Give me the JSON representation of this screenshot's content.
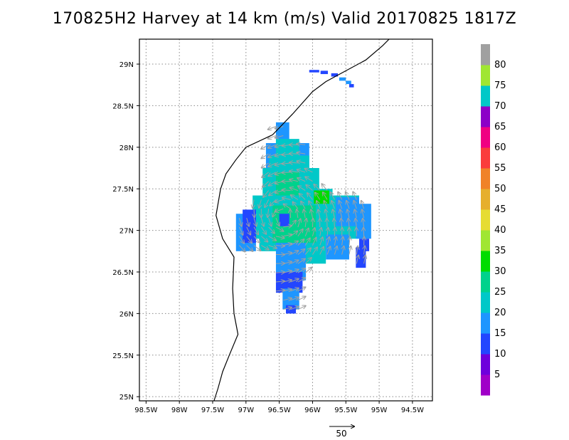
{
  "title": "170825H2 Harvey at 14 km (m/s) Valid 20170825 1817Z",
  "map": {
    "lon_range": [
      -98.6,
      -94.2
    ],
    "lat_range": [
      24.95,
      29.3
    ],
    "lon_ticks": [
      -98.5,
      -98,
      -97.5,
      -97,
      -96.5,
      -96,
      -95.5,
      -95,
      -94.5
    ],
    "lon_tick_labels": [
      "98.5W",
      "98W",
      "97.5W",
      "97W",
      "96.5W",
      "96W",
      "95.5W",
      "95W",
      "94.5W"
    ],
    "lat_ticks": [
      25,
      25.5,
      26,
      26.5,
      27,
      27.5,
      28,
      28.5,
      29
    ],
    "lat_tick_labels": [
      "25N",
      "25.5N",
      "26N",
      "26.5N",
      "27N",
      "27.5N",
      "28N",
      "28.5N",
      "29N"
    ],
    "grid": "dotted",
    "coastline_color": "#000000",
    "coastline": [
      [
        -94.85,
        29.3
      ],
      [
        -94.95,
        29.22
      ],
      [
        -95.2,
        29.05
      ],
      [
        -95.5,
        28.92
      ],
      [
        -95.8,
        28.79
      ],
      [
        -96.0,
        28.67
      ],
      [
        -96.3,
        28.4
      ],
      [
        -96.6,
        28.15
      ],
      [
        -97.0,
        28.0
      ],
      [
        -97.15,
        27.85
      ],
      [
        -97.3,
        27.68
      ],
      [
        -97.38,
        27.5
      ],
      [
        -97.45,
        27.18
      ],
      [
        -97.35,
        26.9
      ],
      [
        -97.18,
        26.68
      ],
      [
        -97.2,
        26.3
      ],
      [
        -97.18,
        26.0
      ],
      [
        -97.12,
        25.75
      ],
      [
        -97.25,
        25.5
      ],
      [
        -97.35,
        25.3
      ],
      [
        -97.42,
        25.1
      ],
      [
        -97.48,
        24.95
      ]
    ]
  },
  "colorbar": {
    "labels": [
      "5",
      "10",
      "15",
      "20",
      "25",
      "30",
      "35",
      "40",
      "45",
      "50",
      "55",
      "60",
      "65",
      "70",
      "75",
      "80"
    ],
    "colors": [
      "#a000c8",
      "#6e00dc",
      "#2346ff",
      "#1e96ff",
      "#00c8c8",
      "#00d28c",
      "#00dc00",
      "#a0e632",
      "#e6dc32",
      "#e6af2d",
      "#f08228",
      "#fa3c3c",
      "#f00082",
      "#8c00c8",
      "#00c8c8",
      "#a0e632",
      "#a0a0a0"
    ]
  },
  "wind_field": {
    "center": [
      -96.43,
      27.17
    ],
    "cell_deg": 0.0833,
    "colors": {
      "lt10": "#2346ff",
      "10to15": "#1e96ff",
      "15to20": "#00c8c8",
      "20to25": "#00d28c",
      "25to30": "#00dc00"
    },
    "blocks": [
      {
        "lon": [
          -96.55,
          -96.35
        ],
        "lat": [
          28.05,
          28.3
        ],
        "c": "10to15"
      },
      {
        "lon": [
          -96.7,
          -96.05
        ],
        "lat": [
          27.75,
          28.05
        ],
        "c": "10to15"
      },
      {
        "lon": [
          -96.55,
          -96.2
        ],
        "lat": [
          27.9,
          28.1
        ],
        "c": "15to20"
      },
      {
        "lon": [
          -96.75,
          -95.9
        ],
        "lat": [
          27.4,
          27.75
        ],
        "c": "15to20"
      },
      {
        "lon": [
          -96.65,
          -96.05
        ],
        "lat": [
          27.45,
          27.9
        ],
        "c": "15to20"
      },
      {
        "lon": [
          -96.55,
          -96.2
        ],
        "lat": [
          27.35,
          27.7
        ],
        "c": "20to25"
      },
      {
        "lon": [
          -96.9,
          -95.3
        ],
        "lat": [
          26.9,
          27.42
        ],
        "c": "15to20"
      },
      {
        "lon": [
          -96.2,
          -95.7
        ],
        "lat": [
          27.3,
          27.5
        ],
        "c": "15to20"
      },
      {
        "lon": [
          -95.98,
          -95.75
        ],
        "lat": [
          27.32,
          27.48
        ],
        "c": "25to30"
      },
      {
        "lon": [
          -95.65,
          -95.3
        ],
        "lat": [
          27.05,
          27.4
        ],
        "c": "10to15"
      },
      {
        "lon": [
          -95.35,
          -95.12
        ],
        "lat": [
          26.9,
          27.32
        ],
        "c": "10to15"
      },
      {
        "lon": [
          -97.15,
          -96.85
        ],
        "lat": [
          26.75,
          27.2
        ],
        "c": "10to15"
      },
      {
        "lon": [
          -97.05,
          -96.85
        ],
        "lat": [
          26.85,
          27.25
        ],
        "c": "lt10"
      },
      {
        "lon": [
          -96.8,
          -96.1
        ],
        "lat": [
          26.75,
          27.3
        ],
        "c": "15to20"
      },
      {
        "lon": [
          -96.3,
          -95.8
        ],
        "lat": [
          26.6,
          26.95
        ],
        "c": "15to20"
      },
      {
        "lon": [
          -95.8,
          -95.45
        ],
        "lat": [
          26.65,
          26.95
        ],
        "c": "10to15"
      },
      {
        "lon": [
          -96.6,
          -95.95
        ],
        "lat": [
          26.85,
          27.3
        ],
        "c": "20to25"
      },
      {
        "lon": [
          -96.4,
          -96.1
        ],
        "lat": [
          26.95,
          27.25
        ],
        "c": "20to25"
      },
      {
        "lon": [
          -96.55,
          -96.1
        ],
        "lat": [
          26.4,
          26.85
        ],
        "c": "10to15"
      },
      {
        "lon": [
          -96.55,
          -96.15
        ],
        "lat": [
          26.25,
          26.5
        ],
        "c": "lt10"
      },
      {
        "lon": [
          -96.45,
          -96.2
        ],
        "lat": [
          26.05,
          26.3
        ],
        "c": "10to15"
      },
      {
        "lon": [
          -96.4,
          -96.25
        ],
        "lat": [
          26.0,
          26.1
        ],
        "c": "lt10"
      },
      {
        "lon": [
          -95.35,
          -95.2
        ],
        "lat": [
          26.55,
          26.8
        ],
        "c": "lt10"
      },
      {
        "lon": [
          -95.3,
          -95.15
        ],
        "lat": [
          26.75,
          26.9
        ],
        "c": "lt10"
      }
    ],
    "eye": {
      "lon": [
        -96.5,
        -96.35
      ],
      "lat": [
        27.05,
        27.2
      ],
      "c": "lt10"
    },
    "fragments": [
      {
        "lon": [
          -96.05,
          -95.9
        ],
        "lat": [
          28.9,
          28.93
        ],
        "c": "lt10"
      },
      {
        "lon": [
          -95.88,
          -95.77
        ],
        "lat": [
          28.88,
          28.92
        ],
        "c": "lt10"
      },
      {
        "lon": [
          -95.72,
          -95.62
        ],
        "lat": [
          28.85,
          28.89
        ],
        "c": "lt10"
      },
      {
        "lon": [
          -95.6,
          -95.5
        ],
        "lat": [
          28.8,
          28.84
        ],
        "c": "10to15"
      },
      {
        "lon": [
          -95.5,
          -95.42
        ],
        "lat": [
          28.76,
          28.8
        ],
        "c": "10to15"
      },
      {
        "lon": [
          -95.45,
          -95.38
        ],
        "lat": [
          28.72,
          28.76
        ],
        "c": "lt10"
      }
    ],
    "vector_color": "#a0a0a0",
    "reference_vector_label": "50"
  }
}
